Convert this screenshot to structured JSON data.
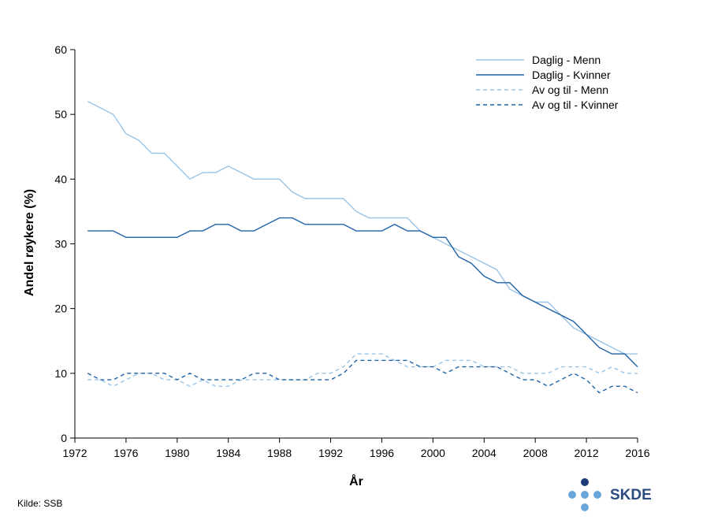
{
  "source_note": "Kilde: SSB",
  "logo": {
    "text": "SKDE",
    "icon": "skde-dots-logo",
    "colors": {
      "dark": "#1f3c7a",
      "light": "#6aa7d8",
      "text": "#2b4a7e"
    }
  },
  "chart_data": {
    "type": "line",
    "xlabel": "År",
    "ylabel": "Andel røykere (%)",
    "xlim": [
      1972,
      2016
    ],
    "ylim": [
      0,
      60
    ],
    "xticks": [
      1972,
      1976,
      1980,
      1984,
      1988,
      1992,
      1996,
      2000,
      2004,
      2008,
      2012,
      2016
    ],
    "yticks": [
      0,
      10,
      20,
      30,
      40,
      50,
      60
    ],
    "grid": false,
    "legend_position": "top-right",
    "x": [
      1973,
      1974,
      1975,
      1976,
      1977,
      1978,
      1979,
      1980,
      1981,
      1982,
      1983,
      1984,
      1985,
      1986,
      1987,
      1988,
      1989,
      1990,
      1991,
      1992,
      1993,
      1994,
      1995,
      1996,
      1997,
      1998,
      1999,
      2000,
      2001,
      2002,
      2003,
      2004,
      2005,
      2006,
      2007,
      2008,
      2009,
      2010,
      2011,
      2012,
      2013,
      2014,
      2015,
      2016
    ],
    "series": [
      {
        "name": "Daglig - Menn",
        "color": "#9ac3e6",
        "dash": "solid",
        "values": [
          52,
          51,
          50,
          47,
          46,
          44,
          44,
          42,
          40,
          41,
          41,
          42,
          41,
          40,
          40,
          40,
          38,
          37,
          37,
          37,
          37,
          35,
          34,
          34,
          34,
          34,
          32,
          31,
          30,
          29,
          28,
          27,
          26,
          23,
          22,
          21,
          21,
          19,
          17,
          16,
          15,
          14,
          13,
          13
        ]
      },
      {
        "name": "Daglig - Kvinner",
        "color": "#1f62a8",
        "dash": "solid",
        "values": [
          32,
          32,
          32,
          31,
          31,
          31,
          31,
          31,
          32,
          32,
          33,
          33,
          32,
          32,
          33,
          34,
          34,
          33,
          33,
          33,
          33,
          32,
          32,
          32,
          33,
          32,
          32,
          31,
          31,
          28,
          27,
          25,
          24,
          24,
          22,
          21,
          20,
          19,
          18,
          16,
          14,
          13,
          13,
          11
        ]
      },
      {
        "name": "Av og til - Menn",
        "color": "#9ac3e6",
        "dash": "dashed",
        "values": [
          9,
          9,
          8,
          9,
          10,
          10,
          9,
          9,
          8,
          9,
          8,
          8,
          9,
          9,
          9,
          9,
          9,
          9,
          10,
          10,
          11,
          13,
          13,
          13,
          12,
          11,
          11,
          11,
          12,
          12,
          12,
          11,
          11,
          11,
          10,
          10,
          10,
          11,
          11,
          11,
          10,
          11,
          10,
          10
        ]
      },
      {
        "name": "Av og til - Kvinner",
        "color": "#1f62a8",
        "dash": "dashed",
        "values": [
          10,
          9,
          9,
          10,
          10,
          10,
          10,
          9,
          10,
          9,
          9,
          9,
          9,
          10,
          10,
          9,
          9,
          9,
          9,
          9,
          10,
          12,
          12,
          12,
          12,
          12,
          11,
          11,
          10,
          11,
          11,
          11,
          11,
          10,
          9,
          9,
          8,
          9,
          10,
          9,
          7,
          8,
          8,
          7
        ]
      }
    ]
  }
}
